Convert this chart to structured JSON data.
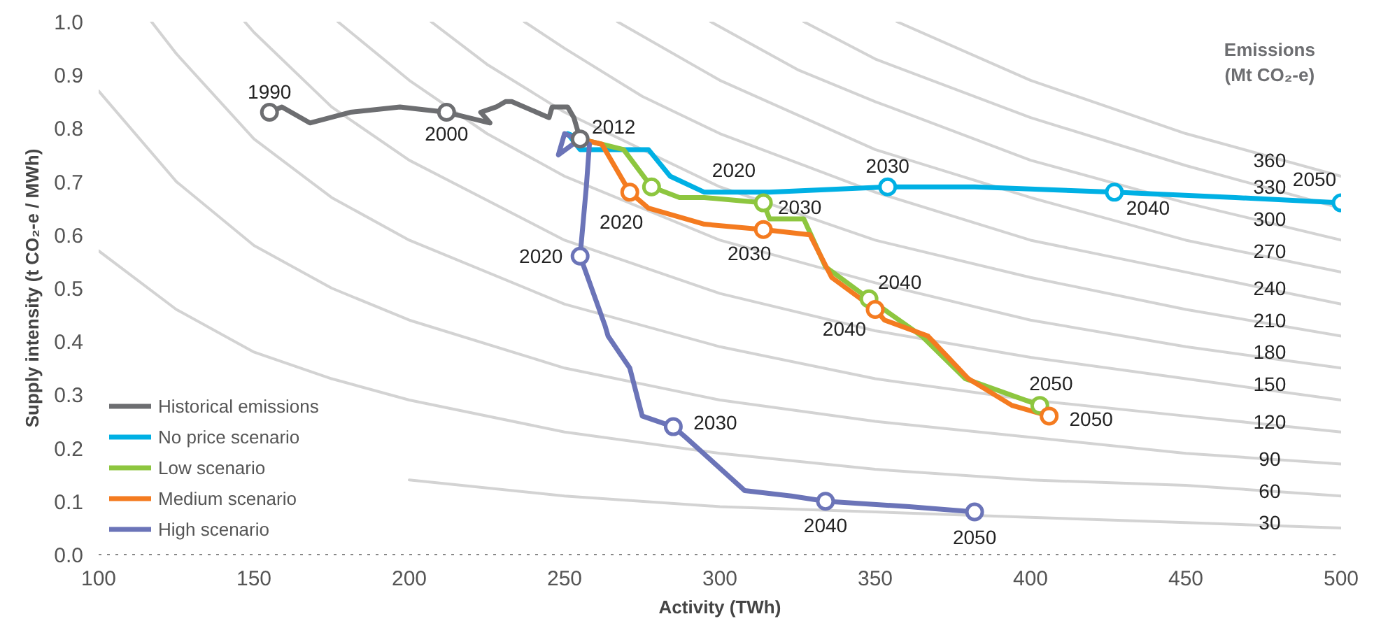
{
  "chart_data": {
    "type": "line",
    "xlabel": "Activity (TWh)",
    "ylabel": "Supply intensity (t CO₂-e / MWh)",
    "xlim": [
      100,
      500
    ],
    "ylim": [
      0,
      1
    ],
    "xticks": [
      100,
      150,
      200,
      250,
      300,
      350,
      400,
      450,
      500
    ],
    "yticks": [
      {
        "value": 0,
        "label": "0.0"
      },
      {
        "value": 0.1,
        "label": "0.1"
      },
      {
        "value": 0.2,
        "label": "0.2"
      },
      {
        "value": 0.3,
        "label": "0.3"
      },
      {
        "value": 0.4,
        "label": "0.4"
      },
      {
        "value": 0.5,
        "label": "0.5"
      },
      {
        "value": 0.6,
        "label": "0.6"
      },
      {
        "value": 0.7,
        "label": "0.7"
      },
      {
        "value": 0.8,
        "label": "0.8"
      },
      {
        "value": 0.9,
        "label": "0.9"
      },
      {
        "value": 1,
        "label": "1.0"
      }
    ],
    "grid": false,
    "legend": "bottom left",
    "line_style": "solid",
    "series": [
      {
        "color": "#d3d3d3",
        "x": [
          200,
          250,
          300,
          350,
          400,
          450,
          500
        ],
        "values": [
          0.14,
          0.11,
          0.09,
          0.08,
          0.07,
          0.06,
          0.05
        ]
      },
      {
        "color": "#d3d3d3",
        "x": [
          100,
          125,
          150,
          175,
          200,
          250,
          300,
          350,
          400,
          450,
          500
        ],
        "values": [
          0.57,
          0.46,
          0.38,
          0.33,
          0.29,
          0.23,
          0.19,
          0.16,
          0.14,
          0.13,
          0.11
        ]
      },
      {
        "color": "#d3d3d3",
        "x": [
          100,
          125,
          150,
          175,
          200,
          250,
          300,
          350,
          400,
          450,
          500
        ],
        "values": [
          0.87,
          0.7,
          0.58,
          0.5,
          0.44,
          0.35,
          0.29,
          0.25,
          0.22,
          0.19,
          0.17
        ]
      },
      {
        "color": "#d3d3d3",
        "x": [
          117,
          125,
          150,
          175,
          200,
          250,
          300,
          350,
          400,
          450,
          500
        ],
        "values": [
          1,
          0.94,
          0.78,
          0.67,
          0.59,
          0.47,
          0.39,
          0.33,
          0.29,
          0.26,
          0.23
        ]
      },
      {
        "color": "#d3d3d3",
        "x": [
          147,
          150,
          175,
          200,
          250,
          300,
          350,
          400,
          450,
          500
        ],
        "values": [
          1,
          0.98,
          0.84,
          0.74,
          0.59,
          0.49,
          0.42,
          0.37,
          0.33,
          0.29
        ]
      },
      {
        "color": "#d3d3d3",
        "x": [
          177,
          200,
          225,
          250,
          300,
          350,
          400,
          450,
          500
        ],
        "values": [
          1,
          0.89,
          0.79,
          0.71,
          0.59,
          0.51,
          0.44,
          0.39,
          0.35
        ]
      },
      {
        "color": "#d3d3d3",
        "x": [
          207,
          225,
          250,
          300,
          350,
          400,
          450,
          500
        ],
        "values": [
          1,
          0.92,
          0.83,
          0.69,
          0.59,
          0.52,
          0.46,
          0.41
        ]
      },
      {
        "color": "#d3d3d3",
        "x": [
          237,
          250,
          275,
          300,
          350,
          400,
          450,
          500
        ],
        "values": [
          1,
          0.95,
          0.86,
          0.79,
          0.68,
          0.59,
          0.53,
          0.47
        ]
      },
      {
        "color": "#d3d3d3",
        "x": [
          267,
          300,
          350,
          400,
          450,
          500
        ],
        "values": [
          1,
          0.89,
          0.76,
          0.67,
          0.59,
          0.53
        ]
      },
      {
        "color": "#d3d3d3",
        "x": [
          297,
          325,
          350,
          400,
          450,
          500
        ],
        "values": [
          1,
          0.91,
          0.85,
          0.74,
          0.66,
          0.59
        ]
      },
      {
        "color": "#d3d3d3",
        "x": [
          327,
          350,
          400,
          450,
          500
        ],
        "values": [
          1,
          0.93,
          0.82,
          0.73,
          0.65
        ]
      },
      {
        "color": "#d3d3d3",
        "x": [
          357,
          400,
          450,
          500
        ],
        "values": [
          1,
          0.89,
          0.79,
          0.71
        ]
      },
      {
        "name": "Historical emissions",
        "color": "#6d6e71",
        "x": [
          155,
          159,
          168,
          181,
          197,
          212,
          226,
          223,
          228,
          231,
          233,
          245,
          246,
          251,
          253,
          255
        ],
        "values": [
          0.83,
          0.84,
          0.81,
          0.83,
          0.84,
          0.83,
          0.81,
          0.83,
          0.84,
          0.85,
          0.85,
          0.82,
          0.84,
          0.84,
          0.82,
          0.78
        ]
      },
      {
        "name": "No price scenario",
        "color": "#00b0e4",
        "x": [
          255,
          251,
          255,
          277,
          284,
          295,
          300,
          316,
          354,
          382,
          427,
          466,
          500
        ],
        "values": [
          0.78,
          0.79,
          0.76,
          0.76,
          0.71,
          0.68,
          0.68,
          0.68,
          0.69,
          0.69,
          0.68,
          0.67,
          0.66
        ]
      },
      {
        "name": "Low scenario",
        "color": "#8dc63f",
        "x": [
          255,
          262,
          269,
          278,
          287,
          295,
          314,
          316,
          327,
          334,
          348,
          365,
          379,
          403
        ],
        "values": [
          0.78,
          0.77,
          0.76,
          0.69,
          0.67,
          0.67,
          0.66,
          0.63,
          0.63,
          0.54,
          0.48,
          0.41,
          0.33,
          0.28
        ]
      },
      {
        "name": "Medium scenario",
        "color": "#f47b20",
        "x": [
          255,
          262,
          271,
          277,
          295,
          314,
          329,
          336,
          350,
          353,
          367,
          380,
          394,
          406
        ],
        "values": [
          0.78,
          0.77,
          0.68,
          0.65,
          0.62,
          0.61,
          0.6,
          0.52,
          0.46,
          0.44,
          0.41,
          0.33,
          0.28,
          0.26
        ]
      },
      {
        "name": "High scenario",
        "color": "#6b74b8",
        "x": [
          255,
          248,
          250,
          258,
          257,
          255,
          263,
          264,
          271,
          275,
          285,
          289,
          308,
          323,
          334,
          361,
          382
        ],
        "values": [
          0.78,
          0.75,
          0.79,
          0.77,
          0.69,
          0.56,
          0.43,
          0.41,
          0.35,
          0.26,
          0.24,
          0.22,
          0.12,
          0.11,
          0.1,
          0.09,
          0.08
        ]
      },
      {
        "type": "scatter",
        "marker": "circle",
        "color": "#6d6e71",
        "x": [
          155,
          212,
          255
        ],
        "values": [
          0.83,
          0.83,
          0.78
        ]
      },
      {
        "type": "scatter",
        "marker": "circle",
        "color": "#00b0e4",
        "x": [
          354,
          427,
          500
        ],
        "values": [
          0.69,
          0.68,
          0.66
        ]
      },
      {
        "type": "scatter",
        "marker": "circle",
        "color": "#8dc63f",
        "x": [
          278,
          314,
          348,
          403
        ],
        "values": [
          0.69,
          0.66,
          0.48,
          0.28
        ]
      },
      {
        "type": "scatter",
        "marker": "circle",
        "color": "#f47b20",
        "x": [
          271,
          314,
          350,
          406
        ],
        "values": [
          0.68,
          0.61,
          0.46,
          0.26
        ]
      },
      {
        "type": "scatter",
        "marker": "circle",
        "color": "#6b74b8",
        "x": [
          255,
          285,
          334,
          382
        ],
        "values": [
          0.56,
          0.24,
          0.1,
          0.08
        ]
      }
    ],
    "annotations": [
      "Emissions\n(Mt CO₂-e)",
      {
        "text": "360",
        "x": 477,
        "y": 0.74
      },
      {
        "text": "330",
        "x": 477,
        "y": 0.69
      },
      {
        "text": "300",
        "x": 477,
        "y": 0.63
      },
      {
        "text": "270",
        "x": 477,
        "y": 0.57
      },
      {
        "text": "240",
        "x": 477,
        "y": 0.5
      },
      {
        "text": "210",
        "x": 477,
        "y": 0.44
      },
      {
        "text": "180",
        "x": 477,
        "y": 0.38
      },
      {
        "text": "150",
        "x": 477,
        "y": 0.32
      },
      {
        "text": "120",
        "x": 477,
        "y": 0.25
      },
      {
        "text": "90",
        "x": 477,
        "y": 0.18
      },
      {
        "text": "60",
        "x": 477,
        "y": 0.12
      },
      {
        "text": "30",
        "x": 477,
        "y": 0.06
      },
      {
        "text": "1990",
        "x": 155,
        "y": 0.83
      },
      {
        "text": "2000",
        "x": 212,
        "y": 0.83
      },
      {
        "text": "2012",
        "x": 255,
        "y": 0.78
      },
      {
        "text": "2020",
        "x": 300,
        "y": 0.68
      },
      {
        "text": "2030",
        "x": 354,
        "y": 0.69
      },
      {
        "text": "2040",
        "x": 427,
        "y": 0.68
      },
      {
        "text": "2050",
        "x": 500,
        "y": 0.66
      },
      {
        "text": "2020",
        "x": 271,
        "y": 0.68
      },
      {
        "text": "2030",
        "x": 314,
        "y": 0.66
      },
      {
        "text": "2030",
        "x": 314,
        "y": 0.61
      },
      {
        "text": "2040",
        "x": 348,
        "y": 0.48
      },
      {
        "text": "2040",
        "x": 350,
        "y": 0.46
      },
      {
        "text": "2050",
        "x": 403,
        "y": 0.28
      },
      {
        "text": "2050",
        "x": 406,
        "y": 0.26
      },
      {
        "text": "2020",
        "x": 255,
        "y": 0.56
      },
      {
        "text": "2030",
        "x": 285,
        "y": 0.24
      },
      {
        "text": "2040",
        "x": 334,
        "y": 0.1
      },
      {
        "text": "2050",
        "x": 382,
        "y": 0.08
      }
    ]
  }
}
